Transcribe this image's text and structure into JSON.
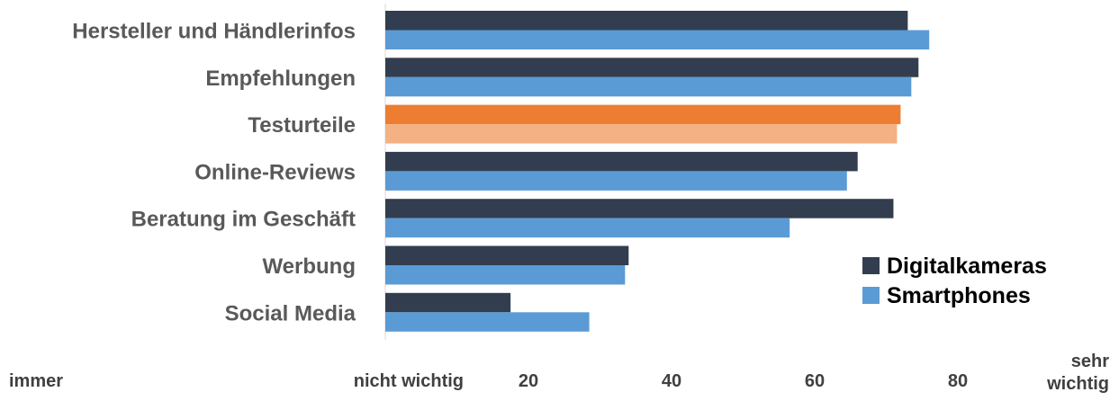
{
  "chart_data": {
    "type": "bar",
    "orientation": "horizontal",
    "categories": [
      "Hersteller und Händlerinfos",
      "Empfehlungen",
      "Testurteile",
      "Online-Reviews",
      "Beratung im Geschäft",
      "Werbung",
      "Social Media"
    ],
    "series": [
      {
        "name": "Digitalkameras",
        "values": [
          73,
          74.5,
          72,
          66,
          71,
          34,
          17.5
        ]
      },
      {
        "name": "Smartphones",
        "values": [
          76,
          73.5,
          71.5,
          64.5,
          56.5,
          33.5,
          28.5
        ]
      }
    ],
    "highlight_category_index": 2,
    "highlight_colors": {
      "Digitalkameras": "#ED7D31",
      "Smartphones": "#F4B183"
    },
    "xlim": [
      0,
      100
    ],
    "x_ticks": [
      {
        "value": 0,
        "label": "nicht wichtig"
      },
      {
        "value": 20,
        "label": "20"
      },
      {
        "value": 40,
        "label": "40"
      },
      {
        "value": 60,
        "label": "60"
      },
      {
        "value": 80,
        "label": "80"
      },
      {
        "value": 100,
        "label": "sehr wichtig"
      }
    ],
    "extra_left_label": "immer",
    "legend_position": "bottom-right",
    "colors": {
      "Digitalkameras": "#323E4F",
      "Smartphones": "#5B9BD5"
    }
  }
}
